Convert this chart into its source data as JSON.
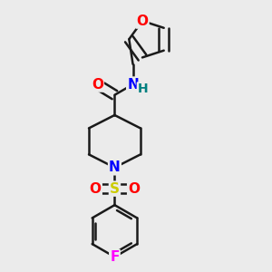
{
  "background_color": "#ebebeb",
  "bond_color": "#1a1a1a",
  "atom_colors": {
    "O": "#ff0000",
    "N": "#0000ff",
    "S": "#cccc00",
    "F": "#ff00ff",
    "H": "#008080"
  },
  "lw": 1.8,
  "fs": 11
}
